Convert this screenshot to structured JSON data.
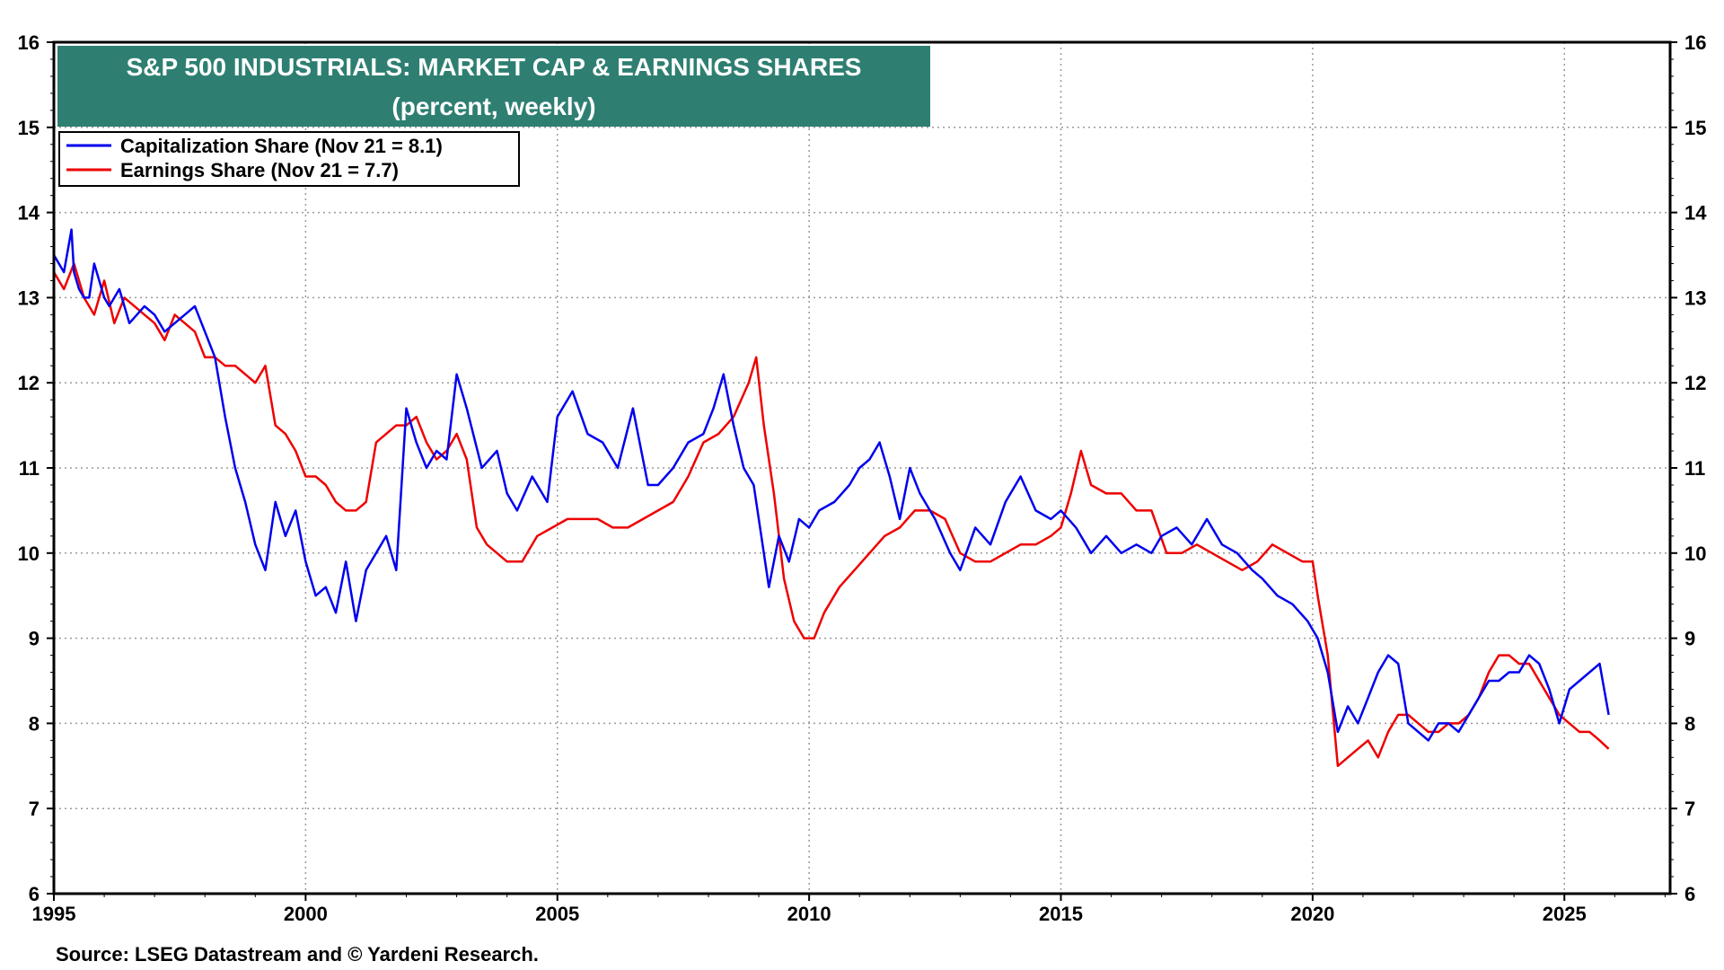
{
  "chart_data": {
    "type": "line",
    "title": "S&P 500 INDUSTRIALS: MARKET CAP & EARNINGS SHARES",
    "subtitle": "(percent, weekly)",
    "source": "Source: LSEG Datastream and © Yardeni Research.",
    "xlim": [
      1995,
      2027.1
    ],
    "ylim": [
      6,
      16
    ],
    "x_ticks": [
      1995,
      2000,
      2005,
      2010,
      2015,
      2020,
      2025
    ],
    "y_ticks": [
      6,
      7,
      8,
      9,
      10,
      11,
      12,
      13,
      14,
      15,
      16
    ],
    "grid": true,
    "legend_position": "top-left",
    "colors": {
      "title_bg": "#2e7f72",
      "cap": "#0000ee",
      "earn": "#ee0000"
    },
    "series": [
      {
        "name": "Capitalization Share  (Nov 21 = 8.1)",
        "color": "#0000ee",
        "x": [
          1995.0,
          1995.2,
          1995.35,
          1995.4,
          1995.5,
          1995.6,
          1995.7,
          1995.8,
          1996.0,
          1996.1,
          1996.2,
          1996.3,
          1996.5,
          1996.8,
          1997.0,
          1997.2,
          1997.4,
          1997.6,
          1997.8,
          1998.0,
          1998.2,
          1998.4,
          1998.6,
          1998.8,
          1999.0,
          1999.2,
          1999.4,
          1999.6,
          1999.8,
          2000.0,
          2000.2,
          2000.4,
          2000.6,
          2000.8,
          2001.0,
          2001.2,
          2001.4,
          2001.6,
          2001.8,
          2002.0,
          2002.2,
          2002.4,
          2002.6,
          2002.8,
          2003.0,
          2003.2,
          2003.5,
          2003.8,
          2004.0,
          2004.2,
          2004.5,
          2004.8,
          2005.0,
          2005.3,
          2005.6,
          2005.9,
          2006.2,
          2006.5,
          2006.8,
          2007.0,
          2007.3,
          2007.6,
          2007.9,
          2008.1,
          2008.3,
          2008.5,
          2008.7,
          2008.9,
          2009.1,
          2009.2,
          2009.4,
          2009.6,
          2009.8,
          2010.0,
          2010.2,
          2010.5,
          2010.8,
          2011.0,
          2011.2,
          2011.4,
          2011.6,
          2011.8,
          2012.0,
          2012.2,
          2012.5,
          2012.8,
          2013.0,
          2013.3,
          2013.6,
          2013.9,
          2014.2,
          2014.5,
          2014.8,
          2015.0,
          2015.3,
          2015.6,
          2015.9,
          2016.2,
          2016.5,
          2016.8,
          2017.0,
          2017.3,
          2017.6,
          2017.9,
          2018.2,
          2018.5,
          2018.8,
          2019.0,
          2019.3,
          2019.6,
          2019.9,
          2020.1,
          2020.3,
          2020.5,
          2020.7,
          2020.9,
          2021.1,
          2021.3,
          2021.5,
          2021.7,
          2021.9,
          2022.1,
          2022.3,
          2022.5,
          2022.7,
          2022.9,
          2023.1,
          2023.3,
          2023.5,
          2023.7,
          2023.9,
          2024.1,
          2024.3,
          2024.5,
          2024.7,
          2024.9,
          2025.1,
          2025.3,
          2025.5,
          2025.7,
          2025.88
        ],
        "values": [
          13.5,
          13.3,
          13.8,
          13.3,
          13.1,
          13.0,
          13.0,
          13.4,
          13.0,
          12.9,
          13.0,
          13.1,
          12.7,
          12.9,
          12.8,
          12.6,
          12.7,
          12.8,
          12.9,
          12.6,
          12.3,
          11.6,
          11.0,
          10.6,
          10.1,
          9.8,
          10.6,
          10.2,
          10.5,
          9.9,
          9.5,
          9.6,
          9.3,
          9.9,
          9.2,
          9.8,
          10.0,
          10.2,
          9.8,
          11.7,
          11.3,
          11.0,
          11.2,
          11.1,
          12.1,
          11.7,
          11.0,
          11.2,
          10.7,
          10.5,
          10.9,
          10.6,
          11.6,
          11.9,
          11.4,
          11.3,
          11.0,
          11.7,
          10.8,
          10.8,
          11.0,
          11.3,
          11.4,
          11.7,
          12.1,
          11.5,
          11.0,
          10.8,
          10.0,
          9.6,
          10.2,
          9.9,
          10.4,
          10.3,
          10.5,
          10.6,
          10.8,
          11.0,
          11.1,
          11.3,
          10.9,
          10.4,
          11.0,
          10.7,
          10.4,
          10.0,
          9.8,
          10.3,
          10.1,
          10.6,
          10.9,
          10.5,
          10.4,
          10.5,
          10.3,
          10.0,
          10.2,
          10.0,
          10.1,
          10.0,
          10.2,
          10.3,
          10.1,
          10.4,
          10.1,
          10.0,
          9.8,
          9.7,
          9.5,
          9.4,
          9.2,
          9.0,
          8.6,
          7.9,
          8.2,
          8.0,
          8.3,
          8.6,
          8.8,
          8.7,
          8.0,
          7.9,
          7.8,
          8.0,
          8.0,
          7.9,
          8.1,
          8.3,
          8.5,
          8.5,
          8.6,
          8.6,
          8.8,
          8.7,
          8.4,
          8.0,
          8.4,
          8.5,
          8.6,
          8.7,
          8.1
        ],
        "last_value_label": "Nov 21 = 8.1"
      },
      {
        "name": "Earnings Share (Nov 21 = 7.7)",
        "color": "#ee0000",
        "x": [
          1995.0,
          1995.2,
          1995.4,
          1995.6,
          1995.8,
          1996.0,
          1996.2,
          1996.4,
          1996.6,
          1996.8,
          1997.0,
          1997.2,
          1997.4,
          1997.6,
          1997.8,
          1998.0,
          1998.2,
          1998.4,
          1998.6,
          1998.8,
          1999.0,
          1999.2,
          1999.4,
          1999.6,
          1999.8,
          2000.0,
          2000.2,
          2000.4,
          2000.6,
          2000.8,
          2001.0,
          2001.2,
          2001.4,
          2001.6,
          2001.8,
          2002.0,
          2002.2,
          2002.4,
          2002.6,
          2002.8,
          2003.0,
          2003.2,
          2003.4,
          2003.6,
          2003.8,
          2004.0,
          2004.3,
          2004.6,
          2004.9,
          2005.2,
          2005.5,
          2005.8,
          2006.1,
          2006.4,
          2006.7,
          2007.0,
          2007.3,
          2007.6,
          2007.9,
          2008.2,
          2008.5,
          2008.8,
          2008.95,
          2009.1,
          2009.3,
          2009.5,
          2009.7,
          2009.9,
          2010.1,
          2010.3,
          2010.6,
          2010.9,
          2011.2,
          2011.5,
          2011.8,
          2012.1,
          2012.4,
          2012.7,
          2013.0,
          2013.3,
          2013.6,
          2013.9,
          2014.2,
          2014.5,
          2014.8,
          2015.0,
          2015.2,
          2015.4,
          2015.6,
          2015.9,
          2016.2,
          2016.5,
          2016.8,
          2017.1,
          2017.4,
          2017.7,
          2018.0,
          2018.3,
          2018.6,
          2018.9,
          2019.2,
          2019.5,
          2019.8,
          2020.0,
          2020.1,
          2020.3,
          2020.5,
          2020.7,
          2020.9,
          2021.1,
          2021.3,
          2021.5,
          2021.7,
          2021.9,
          2022.1,
          2022.3,
          2022.5,
          2022.7,
          2022.9,
          2023.1,
          2023.3,
          2023.5,
          2023.7,
          2023.9,
          2024.1,
          2024.3,
          2024.5,
          2024.7,
          2024.9,
          2025.1,
          2025.3,
          2025.5,
          2025.7,
          2025.88
        ],
        "values": [
          13.3,
          13.1,
          13.4,
          13.0,
          12.8,
          13.2,
          12.7,
          13.0,
          12.9,
          12.8,
          12.7,
          12.5,
          12.8,
          12.7,
          12.6,
          12.3,
          12.3,
          12.2,
          12.2,
          12.1,
          12.0,
          12.2,
          11.5,
          11.4,
          11.2,
          10.9,
          10.9,
          10.8,
          10.6,
          10.5,
          10.5,
          10.6,
          11.3,
          11.4,
          11.5,
          11.5,
          11.6,
          11.3,
          11.1,
          11.2,
          11.4,
          11.1,
          10.3,
          10.1,
          10.0,
          9.9,
          9.9,
          10.2,
          10.3,
          10.4,
          10.4,
          10.4,
          10.3,
          10.3,
          10.4,
          10.5,
          10.6,
          10.9,
          11.3,
          11.4,
          11.6,
          12.0,
          12.3,
          11.5,
          10.7,
          9.7,
          9.2,
          9.0,
          9.0,
          9.3,
          9.6,
          9.8,
          10.0,
          10.2,
          10.3,
          10.5,
          10.5,
          10.4,
          10.0,
          9.9,
          9.9,
          10.0,
          10.1,
          10.1,
          10.2,
          10.3,
          10.7,
          11.2,
          10.8,
          10.7,
          10.7,
          10.5,
          10.5,
          10.0,
          10.0,
          10.1,
          10.0,
          9.9,
          9.8,
          9.9,
          10.1,
          10.0,
          9.9,
          9.9,
          9.5,
          8.8,
          7.5,
          7.6,
          7.7,
          7.8,
          7.6,
          7.9,
          8.1,
          8.1,
          8.0,
          7.9,
          7.9,
          8.0,
          8.0,
          8.1,
          8.3,
          8.6,
          8.8,
          8.8,
          8.7,
          8.7,
          8.5,
          8.3,
          8.1,
          8.0,
          7.9,
          7.9,
          7.8,
          7.7
        ],
        "last_value_label": "Nov 21 = 7.7"
      }
    ]
  }
}
